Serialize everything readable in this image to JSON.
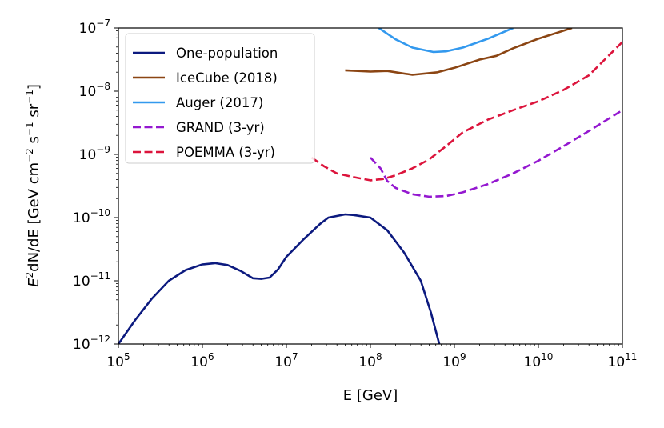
{
  "chart_data": {
    "type": "line",
    "title": "",
    "xlabel": "E [GeV]",
    "ylabel": {
      "base": "E",
      "sup": "2",
      "rest": "dN/dE [GeV cm",
      "u1": "−2",
      "mid1": " s",
      "u2": "−1",
      "mid2": " sr",
      "u3": "−1",
      "end": "]"
    },
    "xscale": "log",
    "yscale": "log",
    "xlim_exp": [
      5,
      11
    ],
    "ylim_exp": [
      -12,
      -7
    ],
    "x_ticks": [
      {
        "base": "10",
        "exp": "5"
      },
      {
        "base": "10",
        "exp": "6"
      },
      {
        "base": "10",
        "exp": "7"
      },
      {
        "base": "10",
        "exp": "8"
      },
      {
        "base": "10",
        "exp": "9"
      },
      {
        "base": "10",
        "exp": "10"
      },
      {
        "base": "10",
        "exp": "11"
      }
    ],
    "y_ticks": [
      {
        "base": "10",
        "exp": "−12"
      },
      {
        "base": "10",
        "exp": "−11"
      },
      {
        "base": "10",
        "exp": "−10"
      },
      {
        "base": "10",
        "exp": "−9"
      },
      {
        "base": "10",
        "exp": "−8"
      },
      {
        "base": "10",
        "exp": "−7"
      }
    ],
    "legend_position": "top-left",
    "series": [
      {
        "name": "One-population",
        "color": "#0c1a7f",
        "style": "solid",
        "points": [
          [
            5.0,
            -12.0
          ],
          [
            5.2,
            -11.62
          ],
          [
            5.4,
            -11.28
          ],
          [
            5.6,
            -11.0
          ],
          [
            5.8,
            -10.83
          ],
          [
            6.0,
            -10.74
          ],
          [
            6.15,
            -10.72
          ],
          [
            6.3,
            -10.75
          ],
          [
            6.45,
            -10.84
          ],
          [
            6.6,
            -10.96
          ],
          [
            6.7,
            -10.97
          ],
          [
            6.8,
            -10.95
          ],
          [
            6.9,
            -10.82
          ],
          [
            7.0,
            -10.62
          ],
          [
            7.2,
            -10.35
          ],
          [
            7.4,
            -10.1
          ],
          [
            7.5,
            -10.0
          ],
          [
            7.7,
            -9.95
          ],
          [
            7.8,
            -9.96
          ],
          [
            8.0,
            -10.0
          ],
          [
            8.2,
            -10.2
          ],
          [
            8.4,
            -10.55
          ],
          [
            8.6,
            -11.0
          ],
          [
            8.72,
            -11.5
          ],
          [
            8.82,
            -12.0
          ]
        ]
      },
      {
        "name": "IceCube (2018)",
        "color": "#8b4513",
        "style": "solid",
        "points": [
          [
            7.7,
            -7.67
          ],
          [
            8.0,
            -7.69
          ],
          [
            8.2,
            -7.68
          ],
          [
            8.5,
            -7.74
          ],
          [
            8.8,
            -7.7
          ],
          [
            9.0,
            -7.63
          ],
          [
            9.3,
            -7.5
          ],
          [
            9.5,
            -7.44
          ],
          [
            9.7,
            -7.32
          ],
          [
            10.0,
            -7.17
          ],
          [
            10.4,
            -7.0
          ]
        ]
      },
      {
        "name": "Auger (2017)",
        "color": "#3399ee",
        "style": "solid",
        "points": [
          [
            8.1,
            -7.0
          ],
          [
            8.3,
            -7.18
          ],
          [
            8.5,
            -7.31
          ],
          [
            8.75,
            -7.38
          ],
          [
            8.9,
            -7.37
          ],
          [
            9.1,
            -7.31
          ],
          [
            9.4,
            -7.17
          ],
          [
            9.7,
            -7.0
          ]
        ]
      },
      {
        "name": "GRAND (3-yr)",
        "color": "#9418d0",
        "style": "dashed",
        "points": [
          [
            8.0,
            -9.05
          ],
          [
            8.12,
            -9.22
          ],
          [
            8.2,
            -9.42
          ],
          [
            8.3,
            -9.53
          ],
          [
            8.5,
            -9.63
          ],
          [
            8.7,
            -9.67
          ],
          [
            8.9,
            -9.66
          ],
          [
            9.1,
            -9.6
          ],
          [
            9.4,
            -9.47
          ],
          [
            9.7,
            -9.3
          ],
          [
            10.0,
            -9.1
          ],
          [
            10.3,
            -8.87
          ],
          [
            10.6,
            -8.63
          ],
          [
            11.0,
            -8.3
          ]
        ]
      },
      {
        "name": "POEMMA (3-yr)",
        "color": "#dc143c",
        "style": "dashed",
        "points": [
          [
            7.3,
            -9.05
          ],
          [
            7.45,
            -9.19
          ],
          [
            7.6,
            -9.3
          ],
          [
            7.8,
            -9.36
          ],
          [
            8.0,
            -9.41
          ],
          [
            8.15,
            -9.39
          ],
          [
            8.3,
            -9.33
          ],
          [
            8.5,
            -9.22
          ],
          [
            8.7,
            -9.08
          ],
          [
            8.9,
            -8.87
          ],
          [
            9.1,
            -8.65
          ],
          [
            9.4,
            -8.45
          ],
          [
            9.7,
            -8.3
          ],
          [
            10.0,
            -8.16
          ],
          [
            10.3,
            -7.98
          ],
          [
            10.6,
            -7.75
          ],
          [
            11.0,
            -7.22
          ]
        ]
      }
    ]
  }
}
